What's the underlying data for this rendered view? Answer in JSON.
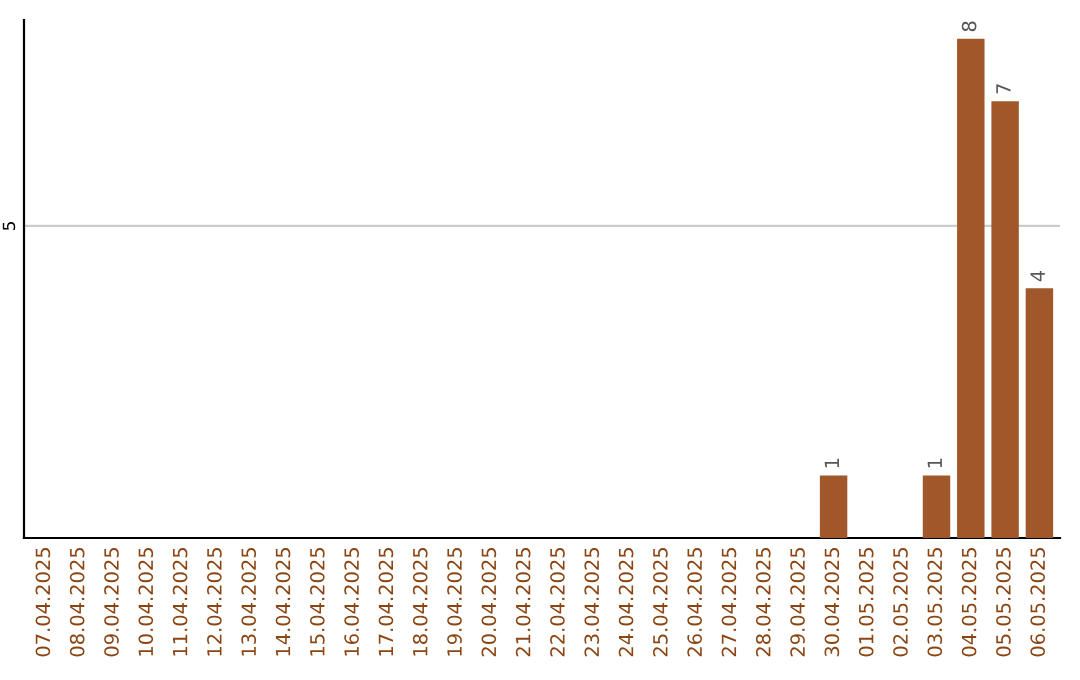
{
  "chart_data": {
    "type": "bar",
    "categories": [
      "07.04.2025",
      "08.04.2025",
      "09.04.2025",
      "10.04.2025",
      "11.04.2025",
      "12.04.2025",
      "13.04.2025",
      "14.04.2025",
      "15.04.2025",
      "16.04.2025",
      "17.04.2025",
      "18.04.2025",
      "19.04.2025",
      "20.04.2025",
      "21.04.2025",
      "22.04.2025",
      "23.04.2025",
      "24.04.2025",
      "25.04.2025",
      "26.04.2025",
      "27.04.2025",
      "28.04.2025",
      "29.04.2025",
      "30.04.2025",
      "01.05.2025",
      "02.05.2025",
      "03.05.2025",
      "04.05.2025",
      "05.05.2025",
      "06.05.2025"
    ],
    "values": [
      null,
      null,
      null,
      null,
      null,
      null,
      null,
      null,
      null,
      null,
      null,
      null,
      null,
      null,
      null,
      null,
      null,
      null,
      null,
      null,
      null,
      null,
      null,
      1,
      null,
      null,
      1,
      8,
      7,
      4
    ],
    "color": "#a0572a",
    "ylim": [
      0,
      8.3
    ],
    "yticks": [
      5
    ],
    "grid": "y",
    "data_labels": true
  }
}
